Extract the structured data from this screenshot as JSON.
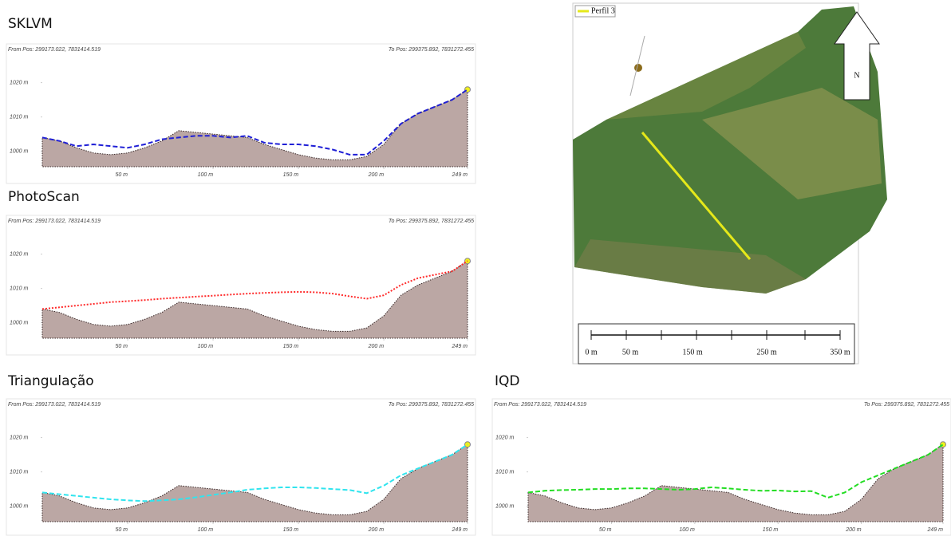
{
  "chart_data": [
    {
      "type": "line",
      "title": "SKLVM",
      "from_label": "From Pos: 299173.022, 7831414.519",
      "to_label": "To Pos: 299375.892, 7831272.455",
      "x": [
        0,
        10,
        20,
        30,
        40,
        50,
        60,
        70,
        80,
        90,
        100,
        110,
        120,
        130,
        140,
        150,
        160,
        170,
        180,
        190,
        200,
        210,
        220,
        230,
        240,
        249
      ],
      "xlim": [
        0,
        249
      ],
      "xticks": [
        {
          "value": 50,
          "label": "50 m"
        },
        {
          "value": 100,
          "label": "100 m"
        },
        {
          "value": 150,
          "label": "150 m"
        },
        {
          "value": 200,
          "label": "200 m"
        },
        {
          "value": 249,
          "label": "249 m"
        }
      ],
      "ylim": [
        995.5,
        1022
      ],
      "yticks": [
        {
          "value": 1000,
          "label": "1000 m"
        },
        {
          "value": 1010,
          "label": "1010 m"
        },
        {
          "value": 1020,
          "label": "1020 m"
        }
      ],
      "series": [
        {
          "color": "#bba7a4",
          "area": true,
          "values": [
            1004,
            1003,
            1001,
            999.5,
            999,
            999.5,
            1001,
            1003,
            1006,
            1005.5,
            1005,
            1004.5,
            1004,
            1002,
            1000.5,
            999,
            998,
            997.5,
            997.5,
            998.5,
            1002,
            1008,
            1011,
            1013,
            1015,
            1018
          ]
        },
        {
          "color": "#1f1fd6",
          "dash": "6,3",
          "values": [
            1004,
            1003,
            1001.5,
            1002,
            1001.5,
            1001,
            1002,
            1003.5,
            1004,
            1004.5,
            1004.5,
            1004,
            1004.5,
            1002.5,
            1002,
            1002,
            1001.5,
            1000.5,
            999,
            999,
            1003,
            1008,
            1011,
            1013,
            1015,
            1018
          ]
        }
      ]
    },
    {
      "type": "line",
      "title": "PhotoScan",
      "from_label": "From Pos: 299173.022, 7831414.519",
      "to_label": "To Pos: 299375.892, 7831272.455",
      "x": [
        0,
        10,
        20,
        30,
        40,
        50,
        60,
        70,
        80,
        90,
        100,
        110,
        120,
        130,
        140,
        150,
        160,
        170,
        180,
        190,
        200,
        210,
        220,
        230,
        240,
        249
      ],
      "xlim": [
        0,
        249
      ],
      "xticks": [
        {
          "value": 50,
          "label": "50 m"
        },
        {
          "value": 100,
          "label": "100 m"
        },
        {
          "value": 150,
          "label": "150 m"
        },
        {
          "value": 200,
          "label": "200 m"
        },
        {
          "value": 249,
          "label": "249 m"
        }
      ],
      "ylim": [
        995.5,
        1022
      ],
      "yticks": [
        {
          "value": 1000,
          "label": "1000 m"
        },
        {
          "value": 1010,
          "label": "1010 m"
        },
        {
          "value": 1020,
          "label": "1020 m"
        }
      ],
      "series": [
        {
          "color": "#bba7a4",
          "area": true,
          "values": [
            1004,
            1003,
            1001,
            999.5,
            999,
            999.5,
            1001,
            1003,
            1006,
            1005.5,
            1005,
            1004.5,
            1004,
            1002,
            1000.5,
            999,
            998,
            997.5,
            997.5,
            998.5,
            1002,
            1008,
            1011,
            1013,
            1015,
            1018
          ]
        },
        {
          "color": "#ff2a2a",
          "dash": "2,2",
          "values": [
            1004,
            1004.5,
            1005,
            1005.5,
            1006,
            1006.3,
            1006.6,
            1007,
            1007.3,
            1007.6,
            1007.9,
            1008.2,
            1008.5,
            1008.7,
            1008.9,
            1009,
            1008.9,
            1008.5,
            1007.7,
            1007,
            1008,
            1011,
            1013,
            1014,
            1015,
            1018
          ]
        }
      ]
    },
    {
      "type": "line",
      "title": "Triangulação",
      "from_label": "From Pos: 299173.022, 7831414.519",
      "to_label": "To Pos: 299375.892, 7831272.455",
      "x": [
        0,
        10,
        20,
        30,
        40,
        50,
        60,
        70,
        80,
        90,
        100,
        110,
        120,
        130,
        140,
        150,
        160,
        170,
        180,
        190,
        200,
        210,
        220,
        230,
        240,
        249
      ],
      "xlim": [
        0,
        249
      ],
      "xticks": [
        {
          "value": 50,
          "label": "50 m"
        },
        {
          "value": 100,
          "label": "100 m"
        },
        {
          "value": 150,
          "label": "150 m"
        },
        {
          "value": 200,
          "label": "200 m"
        },
        {
          "value": 249,
          "label": "249 m"
        }
      ],
      "ylim": [
        995.5,
        1022
      ],
      "yticks": [
        {
          "value": 1000,
          "label": "1000 m"
        },
        {
          "value": 1010,
          "label": "1010 m"
        },
        {
          "value": 1020,
          "label": "1020 m"
        }
      ],
      "series": [
        {
          "color": "#bba7a4",
          "area": true,
          "values": [
            1004,
            1003,
            1001,
            999.5,
            999,
            999.5,
            1001,
            1003,
            1006,
            1005.5,
            1005,
            1004.5,
            1004,
            1002,
            1000.5,
            999,
            998,
            997.5,
            997.5,
            998.5,
            1002,
            1008,
            1011,
            1013,
            1015,
            1018
          ]
        },
        {
          "color": "#30e4ee",
          "dash": "6,3",
          "values": [
            1004,
            1003.5,
            1003,
            1002.5,
            1002,
            1001.7,
            1001.5,
            1001.7,
            1002,
            1002.6,
            1003.3,
            1004,
            1004.8,
            1005.2,
            1005.5,
            1005.5,
            1005.3,
            1005,
            1004.7,
            1003.8,
            1006,
            1009,
            1011,
            1013,
            1015,
            1018
          ]
        }
      ]
    },
    {
      "type": "line",
      "title": "IQD",
      "from_label": "From Pos: 299173.022, 7831414.519",
      "to_label": "To Pos: 299375.892, 7831272.455",
      "x": [
        0,
        10,
        20,
        30,
        40,
        50,
        60,
        70,
        80,
        90,
        100,
        110,
        120,
        130,
        140,
        150,
        160,
        170,
        180,
        190,
        200,
        210,
        220,
        230,
        240,
        249
      ],
      "xlim": [
        0,
        249
      ],
      "xticks": [
        {
          "value": 50,
          "label": "50 m"
        },
        {
          "value": 100,
          "label": "100 m"
        },
        {
          "value": 150,
          "label": "150 m"
        },
        {
          "value": 200,
          "label": "200 m"
        },
        {
          "value": 249,
          "label": "249 m"
        }
      ],
      "ylim": [
        995.5,
        1022
      ],
      "yticks": [
        {
          "value": 1000,
          "label": "1000 m"
        },
        {
          "value": 1010,
          "label": "1010 m"
        },
        {
          "value": 1020,
          "label": "1020 m"
        }
      ],
      "series": [
        {
          "color": "#bba7a4",
          "area": true,
          "values": [
            1004,
            1003,
            1001,
            999.5,
            999,
            999.5,
            1001,
            1003,
            1006,
            1005.5,
            1005,
            1004.5,
            1004,
            1002,
            1000.5,
            999,
            998,
            997.5,
            997.5,
            998.5,
            1002,
            1008,
            1011,
            1013,
            1015,
            1018
          ]
        },
        {
          "color": "#22dd22",
          "dash": "6,3",
          "values": [
            1004,
            1004.5,
            1004.7,
            1004.8,
            1005,
            1005,
            1005.2,
            1005.2,
            1005,
            1004.8,
            1005,
            1005.5,
            1005.2,
            1004.8,
            1004.5,
            1004.6,
            1004.3,
            1004.4,
            1002.5,
            1004,
            1007,
            1009,
            1011,
            1013,
            1015,
            1018
          ]
        }
      ]
    }
  ],
  "map": {
    "legend": "Perfil 3",
    "north": "N",
    "scale_labels": [
      "0 m",
      "50 m",
      "150 m",
      "250 m",
      "350 m"
    ]
  }
}
